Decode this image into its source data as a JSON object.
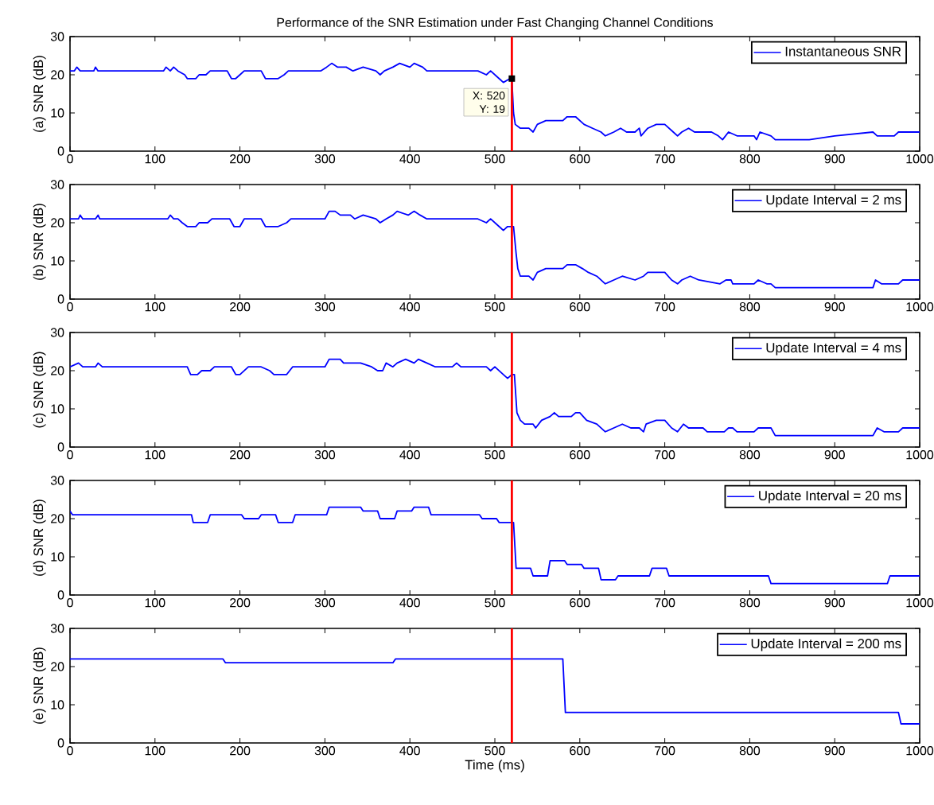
{
  "chart_data": [
    {
      "type": "line",
      "title": "Performance of the SNR Estimation under Fast Changing Channel Conditions",
      "ylabel": "(a) SNR (dB)",
      "xlim": [
        0,
        1000
      ],
      "ylim": [
        0,
        30
      ],
      "xticks": [
        0,
        100,
        200,
        300,
        400,
        500,
        600,
        700,
        800,
        900,
        1000
      ],
      "yticks": [
        0,
        10,
        20,
        30
      ],
      "legend": "top right",
      "ref_lines": [
        {
          "axis": "x",
          "value": 520,
          "color": "#ff0000"
        }
      ],
      "annotations": [
        {
          "text": "X: 520 Y: 19",
          "x": 520,
          "y": 19
        }
      ],
      "series": [
        {
          "name": "Instantaneous SNR",
          "color": "#0000ff",
          "x": [
            0,
            5,
            8,
            12,
            28,
            30,
            33,
            110,
            113,
            118,
            122,
            127,
            135,
            138,
            148,
            152,
            160,
            165,
            185,
            190,
            195,
            200,
            205,
            225,
            230,
            245,
            252,
            257,
            295,
            302,
            308,
            315,
            325,
            333,
            345,
            360,
            365,
            370,
            380,
            388,
            400,
            405,
            415,
            420,
            450,
            480,
            490,
            495,
            505,
            510,
            518,
            520,
            522,
            524,
            530,
            540,
            545,
            550,
            560,
            580,
            585,
            595,
            605,
            615,
            625,
            630,
            640,
            648,
            655,
            665,
            670,
            672,
            680,
            690,
            700,
            710,
            715,
            720,
            728,
            735,
            755,
            763,
            768,
            775,
            785,
            805,
            808,
            812,
            825,
            830,
            870,
            900,
            945,
            950,
            970,
            975,
            1000
          ],
          "values": [
            21,
            21,
            22,
            21,
            21,
            22,
            21,
            21,
            22,
            21,
            22,
            21,
            20,
            19,
            19,
            20,
            20,
            21,
            21,
            19,
            19,
            20,
            21,
            21,
            19,
            19,
            20,
            21,
            21,
            22,
            23,
            22,
            22,
            21,
            22,
            21,
            20,
            21,
            22,
            23,
            22,
            23,
            22,
            21,
            21,
            21,
            20,
            21,
            19,
            18,
            19,
            19,
            10,
            7,
            6,
            6,
            5,
            7,
            8,
            8,
            9,
            9,
            7,
            6,
            5,
            4,
            5,
            6,
            5,
            5,
            6,
            4,
            6,
            7,
            7,
            5,
            4,
            5,
            6,
            5,
            5,
            4,
            3,
            5,
            4,
            4,
            3,
            5,
            4,
            3,
            3,
            4,
            5,
            4,
            4,
            5,
            5
          ]
        }
      ]
    },
    {
      "type": "line",
      "ylabel": "(b) SNR (dB)",
      "xlim": [
        0,
        1000
      ],
      "ylim": [
        0,
        30
      ],
      "xticks": [
        0,
        100,
        200,
        300,
        400,
        500,
        600,
        700,
        800,
        900,
        1000
      ],
      "yticks": [
        0,
        10,
        20,
        30
      ],
      "legend": "top right",
      "ref_lines": [
        {
          "axis": "x",
          "value": 520,
          "color": "#ff0000"
        }
      ],
      "series": [
        {
          "name": "Update Interval = 2 ms",
          "color": "#0000ff",
          "x": [
            0,
            10,
            12,
            15,
            30,
            33,
            35,
            115,
            118,
            122,
            127,
            132,
            138,
            148,
            152,
            162,
            167,
            188,
            193,
            200,
            205,
            225,
            230,
            245,
            255,
            260,
            300,
            305,
            312,
            318,
            330,
            335,
            345,
            360,
            365,
            372,
            380,
            385,
            398,
            405,
            412,
            420,
            450,
            455,
            480,
            490,
            495,
            505,
            510,
            515,
            522,
            525,
            527,
            530,
            540,
            545,
            550,
            560,
            580,
            585,
            595,
            603,
            610,
            620,
            630,
            640,
            650,
            665,
            675,
            680,
            700,
            708,
            715,
            720,
            730,
            740,
            765,
            772,
            778,
            780,
            805,
            810,
            820,
            825,
            830,
            870,
            945,
            948,
            955,
            975,
            980,
            1000
          ],
          "values": [
            21,
            21,
            22,
            21,
            21,
            22,
            21,
            21,
            22,
            21,
            21,
            20,
            19,
            19,
            20,
            20,
            21,
            21,
            19,
            19,
            21,
            21,
            19,
            19,
            20,
            21,
            21,
            23,
            23,
            22,
            22,
            21,
            22,
            21,
            20,
            21,
            22,
            23,
            22,
            23,
            22,
            21,
            21,
            21,
            21,
            20,
            21,
            19,
            18,
            19,
            19,
            12,
            8,
            6,
            6,
            5,
            7,
            8,
            8,
            9,
            9,
            8,
            7,
            6,
            4,
            5,
            6,
            5,
            6,
            7,
            7,
            5,
            4,
            5,
            6,
            5,
            4,
            5,
            5,
            4,
            4,
            5,
            4,
            4,
            3,
            3,
            3,
            5,
            4,
            4,
            5,
            5
          ]
        }
      ]
    },
    {
      "type": "line",
      "ylabel": "(c) SNR (dB)",
      "xlim": [
        0,
        1000
      ],
      "ylim": [
        0,
        30
      ],
      "xticks": [
        0,
        100,
        200,
        300,
        400,
        500,
        600,
        700,
        800,
        900,
        1000
      ],
      "yticks": [
        0,
        10,
        20,
        30
      ],
      "legend": "top right",
      "ref_lines": [
        {
          "axis": "x",
          "value": 520,
          "color": "#ff0000"
        }
      ],
      "series": [
        {
          "name": "Update Interval = 4 ms",
          "color": "#0000ff",
          "x": [
            0,
            10,
            15,
            30,
            33,
            38,
            138,
            142,
            150,
            155,
            165,
            170,
            190,
            195,
            200,
            210,
            225,
            235,
            240,
            255,
            262,
            300,
            305,
            318,
            322,
            342,
            355,
            362,
            368,
            372,
            380,
            385,
            395,
            405,
            410,
            420,
            430,
            450,
            455,
            460,
            490,
            495,
            500,
            510,
            515,
            520,
            523,
            526,
            530,
            535,
            545,
            548,
            555,
            565,
            570,
            575,
            590,
            595,
            600,
            608,
            620,
            630,
            640,
            650,
            660,
            670,
            675,
            678,
            690,
            700,
            708,
            715,
            722,
            728,
            745,
            750,
            770,
            775,
            780,
            785,
            805,
            810,
            825,
            830,
            870,
            945,
            950,
            958,
            975,
            980,
            1000
          ],
          "values": [
            21,
            22,
            21,
            21,
            22,
            21,
            21,
            19,
            19,
            20,
            20,
            21,
            21,
            19,
            19,
            21,
            21,
            20,
            19,
            19,
            21,
            21,
            23,
            23,
            22,
            22,
            21,
            20,
            20,
            22,
            21,
            22,
            23,
            22,
            23,
            22,
            21,
            21,
            22,
            21,
            21,
            20,
            21,
            19,
            18,
            19,
            19,
            9,
            7,
            6,
            6,
            5,
            7,
            8,
            9,
            8,
            8,
            9,
            9,
            7,
            6,
            4,
            5,
            6,
            5,
            5,
            4,
            6,
            7,
            7,
            5,
            4,
            6,
            5,
            5,
            4,
            4,
            5,
            5,
            4,
            4,
            5,
            5,
            3,
            3,
            3,
            5,
            4,
            4,
            5,
            5
          ]
        }
      ]
    },
    {
      "type": "line",
      "ylabel": "(d) SNR (dB)",
      "xlim": [
        0,
        1000
      ],
      "ylim": [
        0,
        30
      ],
      "xticks": [
        0,
        100,
        200,
        300,
        400,
        500,
        600,
        700,
        800,
        900,
        1000
      ],
      "yticks": [
        0,
        10,
        20,
        30
      ],
      "legend": "top right",
      "ref_lines": [
        {
          "axis": "x",
          "value": 520,
          "color": "#ff0000"
        }
      ],
      "series": [
        {
          "name": "Update Interval = 20 ms",
          "color": "#0000ff",
          "x": [
            0,
            3,
            143,
            145,
            162,
            165,
            202,
            205,
            222,
            225,
            242,
            245,
            262,
            265,
            302,
            305,
            342,
            345,
            362,
            365,
            382,
            385,
            402,
            405,
            422,
            425,
            482,
            485,
            502,
            505,
            522,
            525,
            542,
            545,
            562,
            565,
            582,
            585,
            602,
            605,
            622,
            625,
            642,
            645,
            682,
            685,
            702,
            705,
            822,
            825,
            962,
            965,
            1000
          ],
          "values": [
            22,
            21,
            21,
            19,
            19,
            21,
            21,
            20,
            20,
            21,
            21,
            19,
            19,
            21,
            21,
            23,
            23,
            22,
            22,
            20,
            20,
            22,
            22,
            23,
            23,
            21,
            21,
            20,
            20,
            19,
            19,
            7,
            7,
            5,
            5,
            9,
            9,
            8,
            8,
            7,
            7,
            4,
            4,
            5,
            5,
            7,
            7,
            5,
            5,
            3,
            3,
            5,
            5
          ]
        }
      ]
    },
    {
      "type": "line",
      "ylabel": "(e) SNR (dB)",
      "xlabel": "Time (ms)",
      "xlim": [
        0,
        1000
      ],
      "ylim": [
        0,
        30
      ],
      "xticks": [
        0,
        100,
        200,
        300,
        400,
        500,
        600,
        700,
        800,
        900,
        1000
      ],
      "yticks": [
        0,
        10,
        20,
        30
      ],
      "legend": "top right",
      "ref_lines": [
        {
          "axis": "x",
          "value": 520,
          "color": "#ff0000"
        }
      ],
      "series": [
        {
          "name": "Update Interval = 200 ms",
          "color": "#0000ff",
          "x": [
            0,
            180,
            183,
            380,
            383,
            580,
            583,
            975,
            978,
            1000
          ],
          "values": [
            22,
            22,
            21,
            21,
            22,
            22,
            8,
            8,
            5,
            5
          ]
        }
      ]
    }
  ]
}
